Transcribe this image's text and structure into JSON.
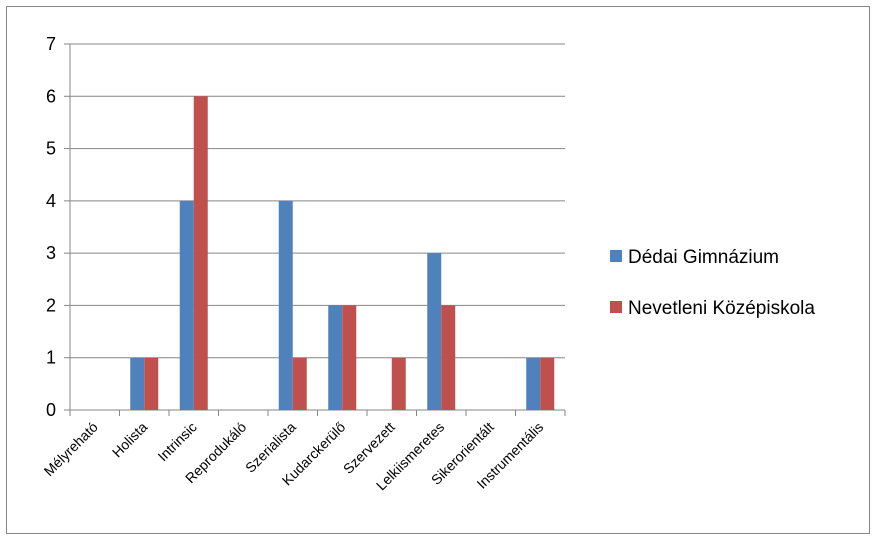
{
  "chart_data": {
    "type": "bar",
    "categories": [
      "Mélyreható",
      "Holista",
      "Intrinsic",
      "Reprodukáló",
      "Szerialista",
      "Kudarckerülő",
      "Szervezett",
      "Lelkiismeretes",
      "Sikerorientált",
      "Instrumentális"
    ],
    "series": [
      {
        "name": "Dédai Gimnázium",
        "color": "#4F81BD",
        "values": [
          0,
          1,
          4,
          0,
          4,
          2,
          0,
          3,
          0,
          1
        ]
      },
      {
        "name": "Nevetleni Középiskola",
        "color": "#C0504D",
        "values": [
          0,
          1,
          6,
          0,
          1,
          2,
          1,
          2,
          0,
          1
        ]
      }
    ],
    "ylim": [
      0,
      7
    ],
    "yticks": [
      0,
      1,
      2,
      3,
      4,
      5,
      6,
      7
    ],
    "grid": true,
    "legend_position": "right"
  }
}
